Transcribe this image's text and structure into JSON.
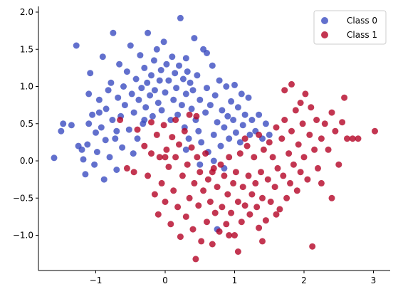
{
  "chart_data": {
    "type": "scatter",
    "title": "",
    "xlabel": "",
    "ylabel": "",
    "xlim": [
      -1.8,
      3.25
    ],
    "ylim": [
      -1.5,
      2.1
    ],
    "xticks": [
      -1,
      0,
      1,
      2,
      3
    ],
    "xtick_labels": [
      "−1",
      "0",
      "1",
      "2",
      "3"
    ],
    "yticks": [
      -1.0,
      -0.5,
      0.0,
      0.5,
      1.0,
      1.5,
      2.0
    ],
    "ytick_labels": [
      "−1.0",
      "−0.5",
      "0.0",
      "0.5",
      "1.0",
      "1.5",
      "2.0"
    ],
    "grid": false,
    "legend": "upper right",
    "series": [
      {
        "name": "Class 0",
        "color": "#3b4cc0",
        "points": [
          [
            -1.6,
            0.04
          ],
          [
            -1.5,
            0.4
          ],
          [
            -1.47,
            0.5
          ],
          [
            -1.35,
            0.48
          ],
          [
            -1.28,
            1.55
          ],
          [
            -1.25,
            0.2
          ],
          [
            -1.2,
            0.15
          ],
          [
            -1.18,
            0.02
          ],
          [
            -1.15,
            -0.18
          ],
          [
            -1.12,
            0.22
          ],
          [
            -1.1,
            0.9
          ],
          [
            -1.08,
            1.18
          ],
          [
            -1.05,
            0.62
          ],
          [
            -1.02,
            -0.05
          ],
          [
            -1.0,
            0.38
          ],
          [
            -0.98,
            0.12
          ],
          [
            -0.95,
            0.82
          ],
          [
            -0.92,
            0.45
          ],
          [
            -0.9,
            1.4
          ],
          [
            -0.88,
            -0.25
          ],
          [
            -0.86,
            0.28
          ],
          [
            -0.85,
            0.7
          ],
          [
            -0.82,
            0.95
          ],
          [
            -0.8,
            0.05
          ],
          [
            -0.78,
            1.05
          ],
          [
            -0.76,
            0.55
          ],
          [
            -0.75,
            1.72
          ],
          [
            -0.72,
            0.3
          ],
          [
            -0.7,
            -0.12
          ],
          [
            -0.68,
            0.85
          ],
          [
            -0.66,
            1.3
          ],
          [
            -0.64,
            0.6
          ],
          [
            -0.62,
            0.18
          ],
          [
            -0.6,
            1.0
          ],
          [
            -0.58,
            0.75
          ],
          [
            -0.55,
            1.2
          ],
          [
            -0.52,
            0.42
          ],
          [
            -0.5,
            1.55
          ],
          [
            -0.48,
            0.9
          ],
          [
            -0.46,
            0.1
          ],
          [
            -0.45,
            0.65
          ],
          [
            -0.42,
            1.1
          ],
          [
            -0.4,
            0.3
          ],
          [
            -0.38,
            0.82
          ],
          [
            -0.36,
            1.42
          ],
          [
            -0.34,
            0.98
          ],
          [
            -0.32,
            0.5
          ],
          [
            -0.3,
            1.25
          ],
          [
            -0.28,
            0.72
          ],
          [
            -0.26,
            1.05
          ],
          [
            -0.25,
            1.72
          ],
          [
            -0.22,
            0.88
          ],
          [
            -0.2,
            1.15
          ],
          [
            -0.18,
            0.6
          ],
          [
            -0.16,
            1.35
          ],
          [
            -0.15,
            0.95
          ],
          [
            -0.12,
            1.5
          ],
          [
            -0.1,
            0.78
          ],
          [
            -0.08,
            1.08
          ],
          [
            -0.06,
            1.22
          ],
          [
            -0.05,
            0.68
          ],
          [
            -0.02,
            1.6
          ],
          [
            0.0,
            0.92
          ],
          [
            0.02,
            1.3
          ],
          [
            0.05,
            1.08
          ],
          [
            0.08,
            0.55
          ],
          [
            0.1,
            1.4
          ],
          [
            0.12,
            0.82
          ],
          [
            0.14,
            1.18
          ],
          [
            0.16,
            0.98
          ],
          [
            0.18,
            0.62
          ],
          [
            0.2,
            1.28
          ],
          [
            0.22,
            1.92
          ],
          [
            0.24,
            0.75
          ],
          [
            0.26,
            1.1
          ],
          [
            0.28,
            0.45
          ],
          [
            0.3,
            0.9
          ],
          [
            0.32,
            1.2
          ],
          [
            0.34,
            0.3
          ],
          [
            0.36,
            1.05
          ],
          [
            0.38,
            0.7
          ],
          [
            0.4,
            0.95
          ],
          [
            0.42,
            1.65
          ],
          [
            0.44,
            0.55
          ],
          [
            0.46,
            1.15
          ],
          [
            0.48,
            0.4
          ],
          [
            0.5,
            0.82
          ],
          [
            0.52,
            0.25
          ],
          [
            0.55,
            1.5
          ],
          [
            0.58,
            0.65
          ],
          [
            0.6,
            0.98
          ],
          [
            0.62,
            0.12
          ],
          [
            0.65,
            0.75
          ],
          [
            0.68,
            1.28
          ],
          [
            0.7,
            0.35
          ],
          [
            0.72,
            0.88
          ],
          [
            0.75,
            0.52
          ],
          [
            0.78,
            1.08
          ],
          [
            0.8,
            0.2
          ],
          [
            0.82,
            0.68
          ],
          [
            0.85,
            0.45
          ],
          [
            0.88,
            1.0
          ],
          [
            0.9,
            0.6
          ],
          [
            0.92,
            0.3
          ],
          [
            0.95,
            0.8
          ],
          [
            0.98,
            0.55
          ],
          [
            1.0,
            1.02
          ],
          [
            1.02,
            0.38
          ],
          [
            1.05,
            0.72
          ],
          [
            1.08,
            0.25
          ],
          [
            1.1,
            0.9
          ],
          [
            1.12,
            0.48
          ],
          [
            1.15,
            0.62
          ],
          [
            1.2,
            0.85
          ],
          [
            1.22,
            0.35
          ],
          [
            1.25,
            0.55
          ],
          [
            1.3,
            0.4
          ],
          [
            1.35,
            0.62
          ],
          [
            1.4,
            0.3
          ],
          [
            1.45,
            0.5
          ],
          [
            1.5,
            0.35
          ],
          [
            0.75,
            -0.92
          ],
          [
            0.7,
            0.0
          ],
          [
            0.85,
            -0.1
          ],
          [
            0.3,
            0.15
          ],
          [
            0.5,
            -0.05
          ],
          [
            -0.95,
            0.65
          ],
          [
            -1.1,
            0.5
          ],
          [
            -0.3,
            0.55
          ],
          [
            0.6,
            1.45
          ],
          [
            0.3,
            1.38
          ],
          [
            -0.7,
            0.4
          ]
        ]
      },
      {
        "name": "Class 1",
        "color": "#b40426",
        "points": [
          [
            -0.55,
            -0.1
          ],
          [
            -0.65,
            0.55
          ],
          [
            -0.4,
            0.42
          ],
          [
            -0.3,
            0.2
          ],
          [
            -0.25,
            -0.2
          ],
          [
            -0.2,
            0.1
          ],
          [
            -0.15,
            -0.45
          ],
          [
            -0.12,
            0.35
          ],
          [
            -0.1,
            -0.72
          ],
          [
            -0.08,
            0.05
          ],
          [
            -0.05,
            -0.3
          ],
          [
            -0.02,
            0.48
          ],
          [
            0.0,
            -0.55
          ],
          [
            0.02,
            0.15
          ],
          [
            0.05,
            -0.08
          ],
          [
            0.08,
            -0.85
          ],
          [
            0.1,
            0.32
          ],
          [
            0.12,
            -0.4
          ],
          [
            0.15,
            0.05
          ],
          [
            0.18,
            -0.62
          ],
          [
            0.2,
            0.22
          ],
          [
            0.22,
            -1.02
          ],
          [
            0.25,
            -0.2
          ],
          [
            0.28,
            0.4
          ],
          [
            0.3,
            -0.75
          ],
          [
            0.32,
            -0.05
          ],
          [
            0.35,
            -0.5
          ],
          [
            0.38,
            0.18
          ],
          [
            0.4,
            -0.92
          ],
          [
            0.42,
            -0.3
          ],
          [
            0.44,
            -1.32
          ],
          [
            0.46,
            0.05
          ],
          [
            0.48,
            -0.6
          ],
          [
            0.5,
            -0.15
          ],
          [
            0.52,
            -1.08
          ],
          [
            0.55,
            -0.4
          ],
          [
            0.58,
            0.1
          ],
          [
            0.6,
            -0.82
          ],
          [
            0.62,
            -0.25
          ],
          [
            0.65,
            -0.55
          ],
          [
            0.68,
            -1.12
          ],
          [
            0.7,
            -0.1
          ],
          [
            0.72,
            -0.7
          ],
          [
            0.75,
            -0.35
          ],
          [
            0.78,
            -0.95
          ],
          [
            0.8,
            -0.05
          ],
          [
            0.82,
            -0.62
          ],
          [
            0.85,
            -0.2
          ],
          [
            0.88,
            -0.85
          ],
          [
            0.9,
            -0.45
          ],
          [
            0.92,
            0.05
          ],
          [
            0.95,
            -0.7
          ],
          [
            0.98,
            -0.3
          ],
          [
            1.0,
            -1.0
          ],
          [
            1.02,
            -0.15
          ],
          [
            1.05,
            -0.55
          ],
          [
            1.08,
            0.1
          ],
          [
            1.1,
            -0.82
          ],
          [
            1.12,
            -0.35
          ],
          [
            1.15,
            -0.6
          ],
          [
            1.18,
            0.2
          ],
          [
            1.2,
            -0.2
          ],
          [
            1.22,
            -0.72
          ],
          [
            1.25,
            -0.45
          ],
          [
            1.28,
            0.05
          ],
          [
            1.3,
            -0.3
          ],
          [
            1.32,
            -0.62
          ],
          [
            1.35,
            0.35
          ],
          [
            1.38,
            -0.15
          ],
          [
            1.4,
            -0.5
          ],
          [
            1.42,
            0.15
          ],
          [
            1.45,
            -0.8
          ],
          [
            1.48,
            -0.25
          ],
          [
            1.5,
            0.25
          ],
          [
            1.52,
            -0.55
          ],
          [
            1.55,
            0.05
          ],
          [
            1.58,
            -0.35
          ],
          [
            1.6,
            0.45
          ],
          [
            1.62,
            -0.1
          ],
          [
            1.65,
            -0.65
          ],
          [
            1.68,
            0.3
          ],
          [
            1.7,
            -0.2
          ],
          [
            1.72,
            0.55
          ],
          [
            1.75,
            -0.5
          ],
          [
            1.78,
            0.1
          ],
          [
            1.8,
            -0.3
          ],
          [
            1.82,
            0.4
          ],
          [
            1.85,
            -0.05
          ],
          [
            1.88,
            0.68
          ],
          [
            1.9,
            -0.4
          ],
          [
            1.92,
            0.22
          ],
          [
            1.95,
            -0.15
          ],
          [
            1.98,
            0.5
          ],
          [
            2.0,
            0.05
          ],
          [
            2.02,
            0.9
          ],
          [
            2.05,
            -0.25
          ],
          [
            2.08,
            0.35
          ],
          [
            2.1,
            0.72
          ],
          [
            2.12,
            -1.15
          ],
          [
            2.15,
            0.15
          ],
          [
            2.18,
            0.55
          ],
          [
            2.2,
            -0.1
          ],
          [
            2.25,
            0.3
          ],
          [
            2.3,
            0.5
          ],
          [
            2.35,
            0.15
          ],
          [
            2.4,
            0.65
          ],
          [
            2.45,
            0.4
          ],
          [
            2.5,
            -0.05
          ],
          [
            2.55,
            0.52
          ],
          [
            2.58,
            0.85
          ],
          [
            2.62,
            0.3
          ],
          [
            2.7,
            0.3
          ],
          [
            2.78,
            0.3
          ],
          [
            3.02,
            0.4
          ],
          [
            1.82,
            1.03
          ],
          [
            1.72,
            0.95
          ],
          [
            1.95,
            0.78
          ],
          [
            1.4,
            -1.08
          ],
          [
            1.05,
            -1.22
          ],
          [
            0.68,
            -0.15
          ],
          [
            0.15,
            0.55
          ],
          [
            0.45,
            0.6
          ],
          [
            -0.45,
            -0.15
          ],
          [
            -0.2,
            0.52
          ],
          [
            0.35,
            0.62
          ],
          [
            1.15,
            0.3
          ],
          [
            2.4,
            -0.5
          ],
          [
            2.25,
            -0.3
          ],
          [
            1.6,
            -0.72
          ],
          [
            0.0,
            0.05
          ],
          [
            0.92,
            -1.0
          ],
          [
            1.35,
            -0.9
          ]
        ]
      }
    ]
  }
}
